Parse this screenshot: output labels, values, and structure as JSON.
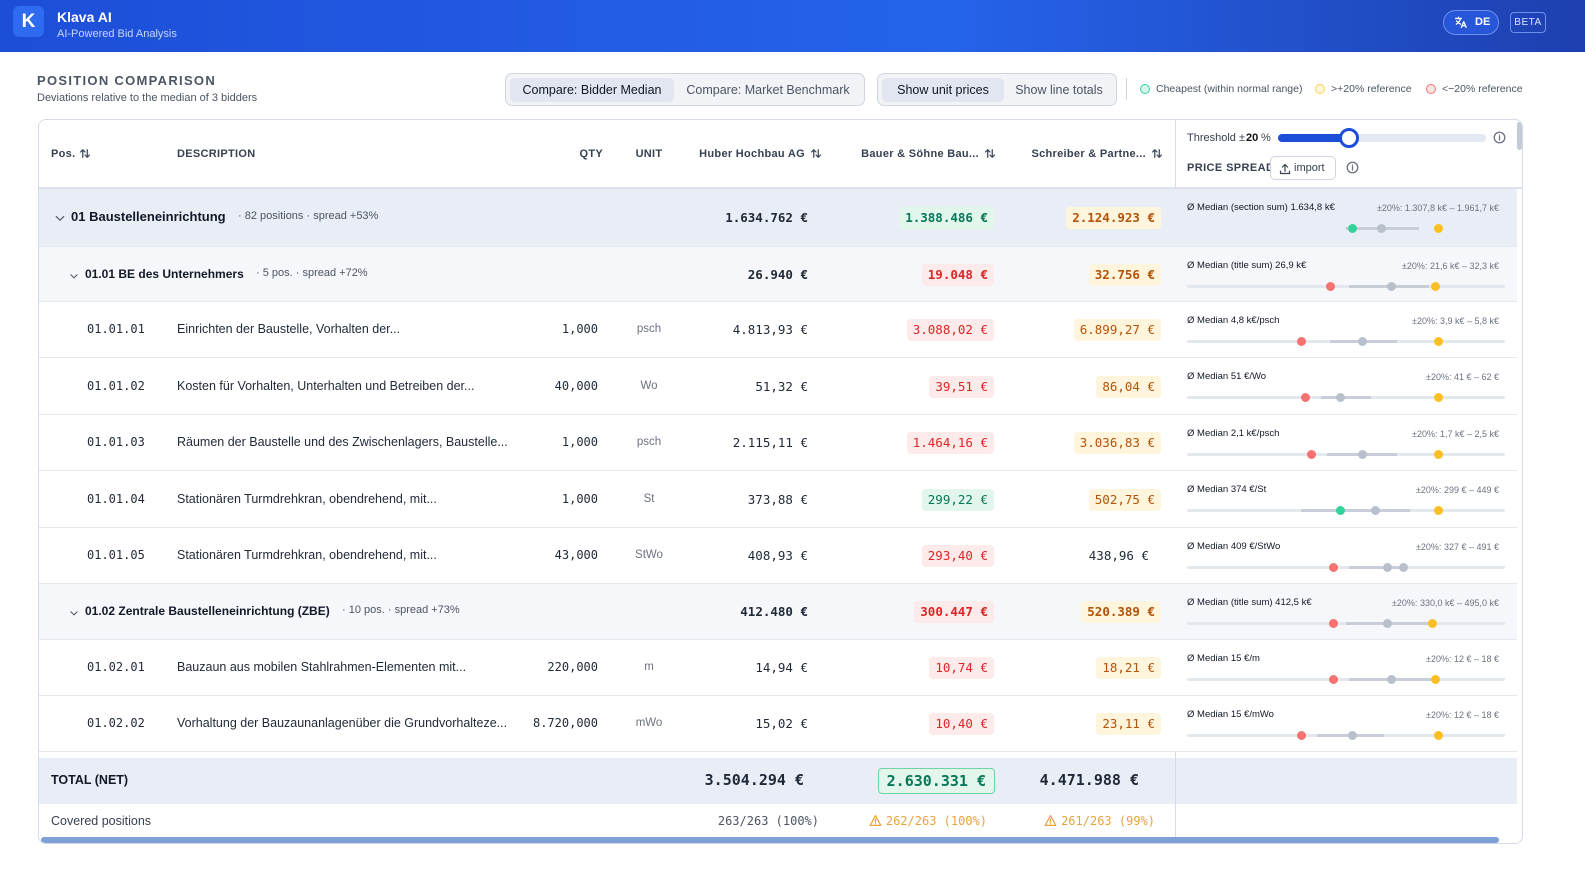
{
  "header": {
    "logo": "K",
    "title": "Klava AI",
    "subtitle": "AI-Powered Bid Analysis",
    "language": "DE",
    "badge": "BETA"
  },
  "section": {
    "title": "POSITION COMPARISON",
    "subtitle": "Deviations relative to the median of 3 bidders"
  },
  "compare_toggle": [
    "Compare: Bidder Median",
    "Compare: Market Benchmark"
  ],
  "view_toggle": [
    "Show unit prices",
    "Show line totals"
  ],
  "legend": [
    {
      "label": "Cheapest (within normal range)",
      "color": "#34d399"
    },
    {
      "label": ">+20% reference",
      "color": "#fcd34d"
    },
    {
      "label": "<−20% reference",
      "color": "#f87171"
    }
  ],
  "columns": [
    "Pos.",
    "DESCRIPTION",
    "QTY",
    "UNIT",
    "Huber Hochbau AG",
    "Bauer & Söhne Bau...",
    "Schreiber & Partne..."
  ],
  "side": {
    "threshold_label": "Threshold ±",
    "threshold_value": "20",
    "threshold_unit": "%",
    "price_spread": "PRICE SPREAD",
    "import": "import"
  },
  "rows": [
    {
      "kind": "group",
      "label": "01 Baustelleneinrichtung",
      "meta": "· 82 positions · spread +53%",
      "prices": [
        "1.634.762 €",
        "1.388.486 €",
        "2.124.923 €"
      ],
      "status": [
        "none",
        "green",
        "orange"
      ],
      "median": "Ø Median (section sum) 1.634,8 k€",
      "range": "±20%: 1.307,8 k€ – 1.961,7 k€"
    },
    {
      "kind": "title",
      "label": "01.01 BE des Unternehmers",
      "meta": "· 5 pos. · spread +72%",
      "prices": [
        "26.940 €",
        "19.048 €",
        "32.756 €"
      ],
      "status": [
        "none",
        "red",
        "orange"
      ],
      "median": "Ø Median (title sum) 26,9 k€",
      "range": "±20%: 21,6 k€ – 32,3 k€"
    },
    {
      "kind": "item",
      "pos": "01.01.01",
      "desc": "Einrichten der Baustelle, Vorhalten der...",
      "qty": "1,000",
      "unit": "psch",
      "prices": [
        "4.813,93 €",
        "3.088,02 €",
        "6.899,27 €"
      ],
      "status": [
        "none",
        "red",
        "orange"
      ],
      "median": "Ø Median 4,8 k€/psch",
      "range": "±20%: 3,9 k€ – 5,8 k€"
    },
    {
      "kind": "item",
      "pos": "01.01.02",
      "desc": "Kosten für Vorhalten, Unterhalten und Betreiben der...",
      "qty": "40,000",
      "unit": "Wo",
      "prices": [
        "51,32 €",
        "39,51 €",
        "86,04 €"
      ],
      "status": [
        "none",
        "red",
        "orange"
      ],
      "median": "Ø Median 51 €/Wo",
      "range": "±20%: 41 € – 62 €"
    },
    {
      "kind": "item",
      "pos": "01.01.03",
      "desc": "Räumen der Baustelle und des Zwischenlagers, Baustelle...",
      "qty": "1,000",
      "unit": "psch",
      "prices": [
        "2.115,11 €",
        "1.464,16 €",
        "3.036,83 €"
      ],
      "status": [
        "none",
        "red",
        "orange"
      ],
      "median": "Ø Median 2,1 k€/psch",
      "range": "±20%: 1,7 k€ – 2,5 k€"
    },
    {
      "kind": "item",
      "pos": "01.01.04",
      "desc": "Stationären Turmdrehkran, obendrehend, mit...",
      "qty": "1,000",
      "unit": "St",
      "prices": [
        "373,88 €",
        "299,22 €",
        "502,75 €"
      ],
      "status": [
        "none",
        "green",
        "orange"
      ],
      "median": "Ø Median 374 €/St",
      "range": "±20%: 299 € – 449 €"
    },
    {
      "kind": "item",
      "pos": "01.01.05",
      "desc": "Stationären Turmdrehkran, obendrehend, mit...",
      "qty": "43,000",
      "unit": "StWo",
      "prices": [
        "408,93 €",
        "293,40 €",
        "438,96 €"
      ],
      "status": [
        "none",
        "red",
        "none"
      ],
      "median": "Ø Median 409 €/StWo",
      "range": "±20%: 327 € – 491 €"
    },
    {
      "kind": "title",
      "label": "01.02 Zentrale Baustelleneinrichtung (ZBE)",
      "meta": "· 10 pos. · spread +73%",
      "prices": [
        "412.480 €",
        "300.447 €",
        "520.389 €"
      ],
      "status": [
        "none",
        "red",
        "orange"
      ],
      "median": "Ø Median (title sum) 412,5 k€",
      "range": "±20%: 330,0 k€ – 495,0 k€"
    },
    {
      "kind": "item",
      "pos": "01.02.01",
      "desc": "Bauzaun aus mobilen Stahlrahmen-Elementen mit...",
      "qty": "220,000",
      "unit": "m",
      "prices": [
        "14,94 €",
        "10,74 €",
        "18,21 €"
      ],
      "status": [
        "none",
        "red",
        "orange"
      ],
      "median": "Ø Median 15 €/m",
      "range": "±20%: 12 € – 18 €"
    },
    {
      "kind": "item",
      "pos": "01.02.02",
      "desc": "Vorhaltung der Bauzaunanlagenüber die Grundvorhalteze...",
      "qty": "8.720,000",
      "unit": "mWo",
      "prices": [
        "15,02 €",
        "10,40 €",
        "23,11 €"
      ],
      "status": [
        "none",
        "red",
        "orange"
      ],
      "median": "Ø Median 15 €/mWo",
      "range": "±20%: 12 € – 18 €"
    }
  ],
  "total": {
    "label": "TOTAL (NET)",
    "values": [
      "3.504.294 €",
      "2.630.331 €",
      "4.471.988 €"
    ],
    "status": [
      "none",
      "green",
      "none"
    ]
  },
  "covered": {
    "label": "Covered positions",
    "values": [
      "263/263 (100%)",
      "262/263 (100%)",
      "261/263 (99%)"
    ],
    "warn": [
      false,
      true,
      true
    ]
  }
}
